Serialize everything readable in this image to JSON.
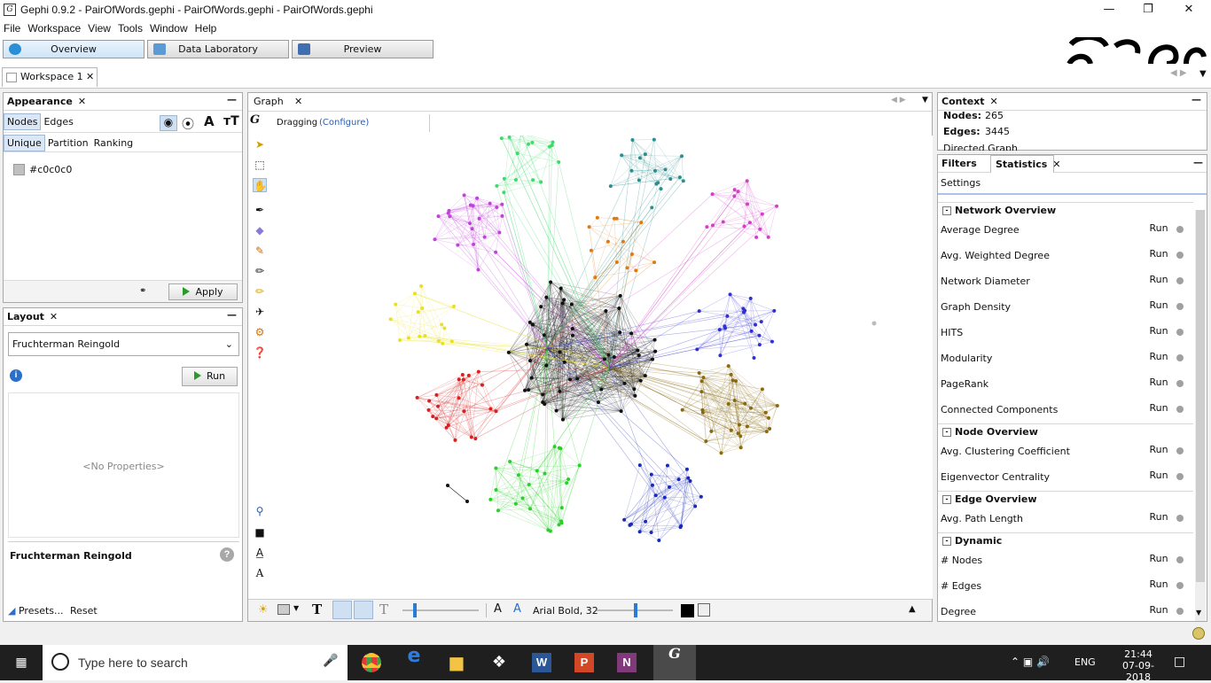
{
  "window": {
    "title": "Gephi 0.9.2 - PairOfWords.gephi - PairOfWords.gephi - PairOfWords.gephi",
    "app_icon": "gephi-icon"
  },
  "menu": [
    "File",
    "Workspace",
    "View",
    "Tools",
    "Window",
    "Help"
  ],
  "modes": [
    {
      "label": "Overview"
    },
    {
      "label": "Data Laboratory"
    },
    {
      "label": "Preview"
    }
  ],
  "workspace_tab": "Workspace 1",
  "appearance": {
    "title": "Appearance",
    "tabs": [
      "Nodes",
      "Edges"
    ],
    "subtabs": [
      "Unique",
      "Partition",
      "Ranking"
    ],
    "color_label": "#c0c0c0",
    "color": "#c0c0c0",
    "apply": "Apply"
  },
  "layout": {
    "title": "Layout",
    "algorithm": "Fruchterman Reingold",
    "run": "Run",
    "no_properties": "<No Properties>",
    "algo_name": "Fruchterman Reingold",
    "presets": "Presets...",
    "reset": "Reset"
  },
  "graph": {
    "tab": "Graph",
    "mode": "Dragging",
    "configure": "(Configure)",
    "font_label": "Arial Bold, 32",
    "font_a1": "A",
    "font_a2": "A",
    "text_tool": "T"
  },
  "context": {
    "title": "Context",
    "nodes_label": "Nodes:",
    "nodes": "265",
    "edges_label": "Edges:",
    "edges": "3445",
    "graph_type": "Directed Graph"
  },
  "stats": {
    "filters_tab": "Filters",
    "stats_tab": "Statistics",
    "settings": "Settings",
    "sections": [
      {
        "title": "Network Overview",
        "rows": [
          "Average Degree",
          "Avg. Weighted Degree",
          "Network Diameter",
          "Graph Density",
          "HITS",
          "Modularity",
          "PageRank",
          "Connected Components"
        ]
      },
      {
        "title": "Node Overview",
        "rows": [
          "Avg. Clustering Coefficient",
          "Eigenvector Centrality"
        ]
      },
      {
        "title": "Edge Overview",
        "rows": [
          "Avg. Path Length"
        ]
      },
      {
        "title": "Dynamic",
        "rows": [
          "# Nodes",
          "# Edges",
          "Degree"
        ]
      }
    ],
    "run": "Run"
  },
  "taskbar": {
    "search": "Type here to search",
    "lang": "ENG",
    "time": "21:44",
    "date": "07-09-2018"
  }
}
